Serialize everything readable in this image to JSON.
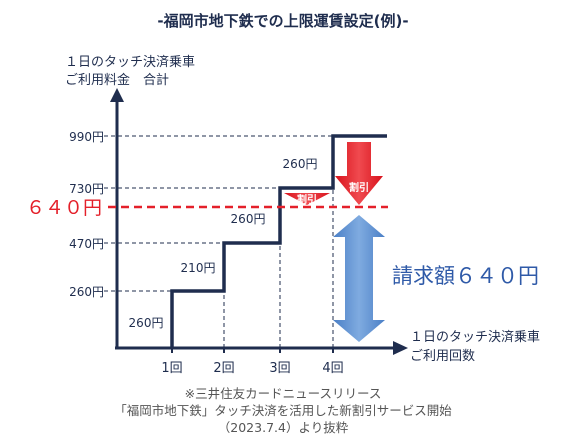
{
  "title": "-福岡市地下鉄での上限運賃設定(例)-",
  "chart_data": {
    "type": "line",
    "subtype": "step",
    "ylabel": [
      "１日のタッチ決済乗車",
      "ご利用料金　合計"
    ],
    "xlabel": [
      "１日のタッチ決済乗車",
      "ご利用回数"
    ],
    "categories": [
      "1回",
      "2回",
      "3回",
      "4回"
    ],
    "y_ticks": [
      {
        "value": 260,
        "label": "260円"
      },
      {
        "value": 470,
        "label": "470円"
      },
      {
        "value": 730,
        "label": "730円"
      },
      {
        "value": 990,
        "label": "990円"
      }
    ],
    "cap": {
      "value": 640,
      "label": "６４０円"
    },
    "cumulative_fare": [
      260,
      470,
      730,
      990
    ],
    "fare_per_ride": [
      260,
      210,
      260,
      260
    ],
    "step_labels": [
      "260円",
      "210円",
      "260円",
      "260円"
    ],
    "discount_label": "割引",
    "billed_label": "請求額６４０円",
    "colors": {
      "step_line": "#1f2d4e",
      "cap_line": "#e4202a",
      "cap_text": "#e4202a",
      "discount_arrow": "#e4202a",
      "billed_arrow": "#5b8fcf",
      "billed_text": "#2f5aa8",
      "guide": "#1f2d4e"
    }
  },
  "source": [
    "※三井住友カードニュースリリース",
    "「福岡市地下鉄」タッチ決済を活用した新割引サービス開始",
    "（2023.7.4）より抜粋"
  ]
}
